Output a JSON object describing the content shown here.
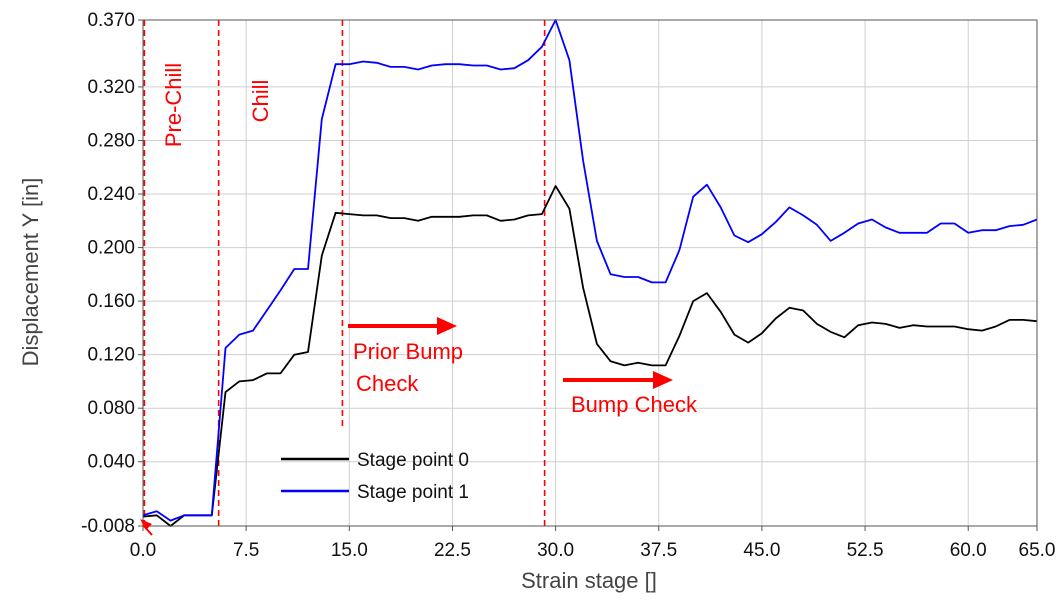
{
  "chart_data": {
    "type": "line",
    "xlabel": "Strain stage []",
    "ylabel": "Displacement Y [in]",
    "xlim": [
      0,
      65
    ],
    "ylim": [
      -0.008,
      0.37
    ],
    "x_ticks": [
      0,
      7.5,
      15,
      22.5,
      30,
      37.5,
      45,
      52.5,
      60,
      65
    ],
    "x_tick_labels": [
      "0.0",
      "7.5",
      "15.0",
      "22.5",
      "30.0",
      "37.5",
      "45.0",
      "52.5",
      "60.0",
      "65.0"
    ],
    "y_ticks": [
      -0.008,
      0.04,
      0.08,
      0.12,
      0.16,
      0.2,
      0.24,
      0.28,
      0.32,
      0.37
    ],
    "y_tick_labels": [
      "-0.008",
      "0.040",
      "0.080",
      "0.120",
      "0.160",
      "0.200",
      "0.240",
      "0.280",
      "0.320",
      "0.370"
    ],
    "grid": true,
    "legend_position": "bottom-left",
    "colors": {
      "series_0": "#000000",
      "series_1": "#0000ff",
      "annotation": "#ff0000",
      "grid": "#cfcfcf"
    },
    "series": [
      {
        "name": "Stage point 0",
        "x": [
          0,
          1,
          2,
          3,
          4,
          5,
          6,
          7,
          8,
          9,
          10,
          11,
          12,
          13,
          14,
          15,
          16,
          17,
          18,
          19,
          20,
          21,
          22,
          23,
          24,
          25,
          26,
          27,
          28,
          29,
          30,
          31,
          32,
          33,
          34,
          35,
          36,
          37,
          38,
          39,
          40,
          41,
          42,
          43,
          44,
          45,
          46,
          47,
          48,
          49,
          50,
          51,
          52,
          53,
          54,
          55,
          56,
          57,
          58,
          59,
          60,
          61,
          62,
          63,
          64,
          65
        ],
        "y": [
          -0.001,
          0.0,
          -0.008,
          0.0,
          0.0,
          0.0,
          0.092,
          0.1,
          0.101,
          0.106,
          0.106,
          0.12,
          0.122,
          0.194,
          0.226,
          0.225,
          0.224,
          0.224,
          0.222,
          0.222,
          0.22,
          0.223,
          0.223,
          0.223,
          0.224,
          0.224,
          0.22,
          0.221,
          0.224,
          0.225,
          0.246,
          0.229,
          0.17,
          0.128,
          0.115,
          0.112,
          0.114,
          0.112,
          0.112,
          0.134,
          0.16,
          0.166,
          0.152,
          0.135,
          0.129,
          0.136,
          0.147,
          0.155,
          0.153,
          0.143,
          0.137,
          0.133,
          0.142,
          0.144,
          0.143,
          0.14,
          0.142,
          0.141,
          0.141,
          0.141,
          0.139,
          0.138,
          0.141,
          0.146,
          0.146,
          0.145
        ]
      },
      {
        "name": "Stage point 1",
        "x": [
          0,
          1,
          2,
          3,
          4,
          5,
          6,
          7,
          8,
          9,
          10,
          11,
          12,
          13,
          14,
          15,
          16,
          17,
          18,
          19,
          20,
          21,
          22,
          23,
          24,
          25,
          26,
          27,
          28,
          29,
          30,
          31,
          32,
          33,
          34,
          35,
          36,
          37,
          38,
          39,
          40,
          41,
          42,
          43,
          44,
          45,
          46,
          47,
          48,
          49,
          50,
          51,
          52,
          53,
          54,
          55,
          56,
          57,
          58,
          59,
          60,
          61,
          62,
          63,
          64,
          65
        ],
        "y": [
          0.0,
          0.003,
          -0.004,
          0.0,
          0.0,
          0.0,
          0.125,
          0.135,
          0.138,
          0.153,
          0.168,
          0.184,
          0.184,
          0.296,
          0.337,
          0.337,
          0.339,
          0.338,
          0.335,
          0.335,
          0.333,
          0.336,
          0.337,
          0.337,
          0.336,
          0.336,
          0.333,
          0.334,
          0.34,
          0.35,
          0.37,
          0.34,
          0.265,
          0.205,
          0.18,
          0.178,
          0.178,
          0.174,
          0.174,
          0.198,
          0.238,
          0.247,
          0.23,
          0.209,
          0.204,
          0.21,
          0.219,
          0.23,
          0.224,
          0.217,
          0.205,
          0.211,
          0.218,
          0.221,
          0.215,
          0.211,
          0.211,
          0.211,
          0.218,
          0.218,
          0.211,
          0.213,
          0.213,
          0.216,
          0.217,
          0.221
        ]
      }
    ],
    "vlines": [
      {
        "x": 0.1,
        "y_from": -0.008,
        "y_to": 0.37
      },
      {
        "x": 5.5,
        "y_from": -0.008,
        "y_to": 0.37
      },
      {
        "x": 14.5,
        "y_from": 0.065,
        "y_to": 0.37
      },
      {
        "x": 29.2,
        "y_from": -0.008,
        "y_to": 0.37
      }
    ],
    "annotations": {
      "pre_chill": "Pre-Chill",
      "chill": "Chill",
      "prior_bump_line1": "Prior Bump",
      "prior_bump_line2": "Check",
      "bump_check": "Bump Check"
    }
  }
}
